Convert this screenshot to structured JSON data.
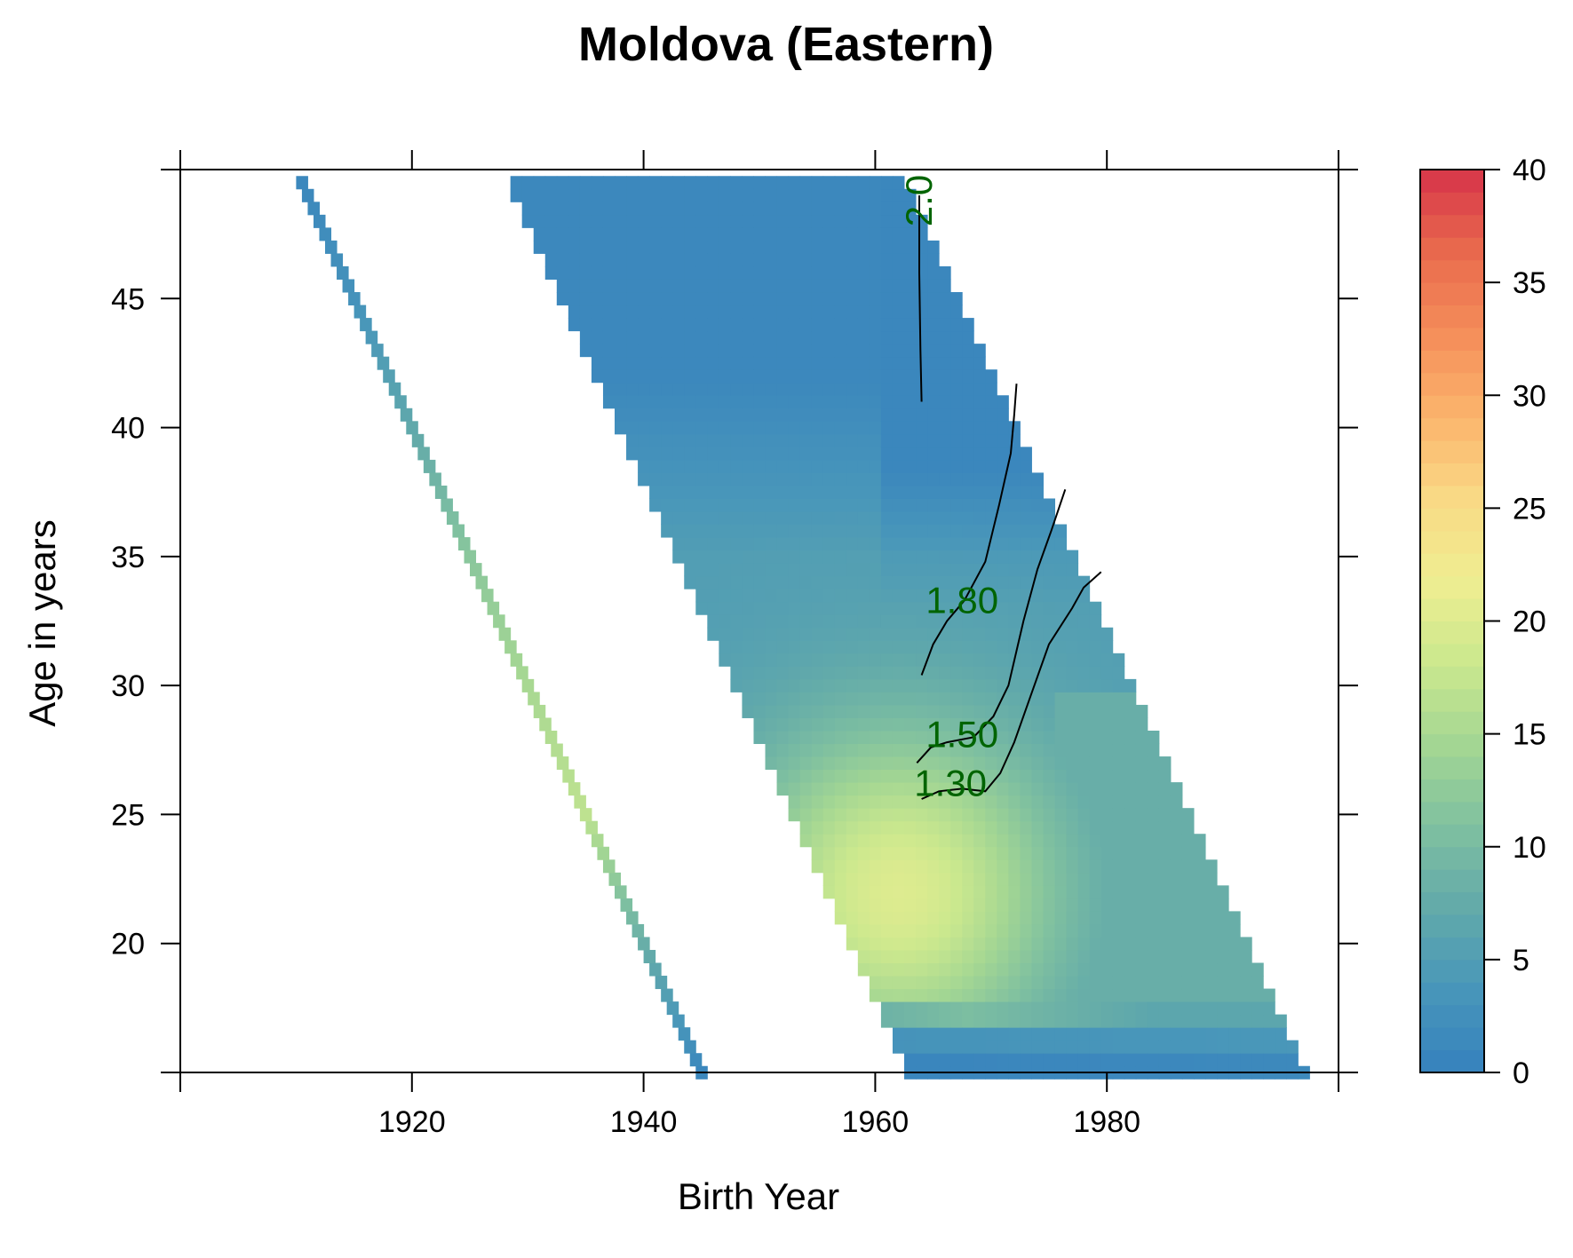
{
  "chart_data": {
    "type": "heatmap",
    "title": "Moldova (Eastern)",
    "xlabel": "Birth Year",
    "ylabel": "Age in years",
    "xlim": [
      1900,
      2000
    ],
    "ylim": [
      15,
      50
    ],
    "x_ticks": [
      1920,
      1940,
      1960,
      1980
    ],
    "x_tick_labels": [
      "1920",
      "1940",
      "1960",
      "1980"
    ],
    "y_ticks": [
      20,
      25,
      30,
      35,
      40,
      45
    ],
    "y_tick_labels": [
      "20",
      "25",
      "30",
      "35",
      "40",
      "45"
    ],
    "colorbar": {
      "range": [
        0,
        40
      ],
      "ticks": [
        0,
        5,
        10,
        15,
        20,
        25,
        30,
        35,
        40
      ],
      "tick_labels": [
        "0",
        "5",
        "10",
        "15",
        "20",
        "25",
        "30",
        "35",
        "40"
      ],
      "colors": [
        "#3681BE",
        "#4896BA",
        "#62AAAA",
        "#7FC0A0",
        "#A3D693",
        "#CBE88E",
        "#EFEE91",
        "#F9D985",
        "#FBB46C",
        "#F58E5A",
        "#E96A4D",
        "#D7334A"
      ]
    },
    "diagonal_band": {
      "period_start_year": 1960,
      "values_by_age": [
        {
          "age": 15,
          "value": 1
        },
        {
          "age": 20,
          "value": 8
        },
        {
          "age": 25,
          "value": 17
        },
        {
          "age": 30,
          "value": 15
        },
        {
          "age": 35,
          "value": 12
        },
        {
          "age": 40,
          "value": 7
        },
        {
          "age": 45,
          "value": 3
        },
        {
          "age": 50,
          "value": 1
        }
      ]
    },
    "main_region": {
      "period_range": [
        1978,
        2012
      ],
      "peak": {
        "birth_year": 1962,
        "age": 22,
        "value": 20
      }
    },
    "contours": [
      {
        "label": "2.00",
        "label_text": "2.0",
        "points": [
          [
            1964.0,
            41
          ],
          [
            1963.9,
            43
          ],
          [
            1963.8,
            46
          ],
          [
            1963.8,
            49
          ]
        ]
      },
      {
        "label": "1.80",
        "label_text": "1.80",
        "points": [
          [
            1964.0,
            30.4
          ],
          [
            1965.0,
            31.6
          ],
          [
            1966.2,
            32.5
          ],
          [
            1967.7,
            33.3
          ],
          [
            1969.5,
            34.8
          ],
          [
            1970.7,
            37.0
          ],
          [
            1971.7,
            39.0
          ],
          [
            1972.0,
            40.5
          ],
          [
            1972.2,
            41.7
          ]
        ]
      },
      {
        "label": "1.50",
        "label_text": "1.50",
        "points": [
          [
            1963.6,
            27.0
          ],
          [
            1964.8,
            27.6
          ],
          [
            1966.2,
            27.8
          ],
          [
            1968.5,
            28.0
          ],
          [
            1970.2,
            28.8
          ],
          [
            1971.5,
            30.0
          ],
          [
            1972.8,
            32.5
          ],
          [
            1974.0,
            34.5
          ],
          [
            1975.2,
            36.0
          ],
          [
            1976.4,
            37.6
          ]
        ]
      },
      {
        "label": "1.30",
        "label_text": "1.30",
        "points": [
          [
            1964.0,
            25.6
          ],
          [
            1965.5,
            25.9
          ],
          [
            1967.5,
            26.0
          ],
          [
            1969.5,
            25.9
          ],
          [
            1970.8,
            26.6
          ],
          [
            1972.0,
            27.8
          ],
          [
            1973.5,
            29.7
          ],
          [
            1975.0,
            31.6
          ],
          [
            1977.0,
            33.0
          ],
          [
            1978.0,
            33.8
          ],
          [
            1979.5,
            34.4
          ]
        ]
      }
    ],
    "contour_labels": [
      {
        "text": "1.80",
        "x": 1967.5,
        "y": 33.3
      },
      {
        "text": "1.50",
        "x": 1967.5,
        "y": 28.1
      },
      {
        "text": "1.30",
        "x": 1966.5,
        "y": 26.2
      }
    ]
  }
}
